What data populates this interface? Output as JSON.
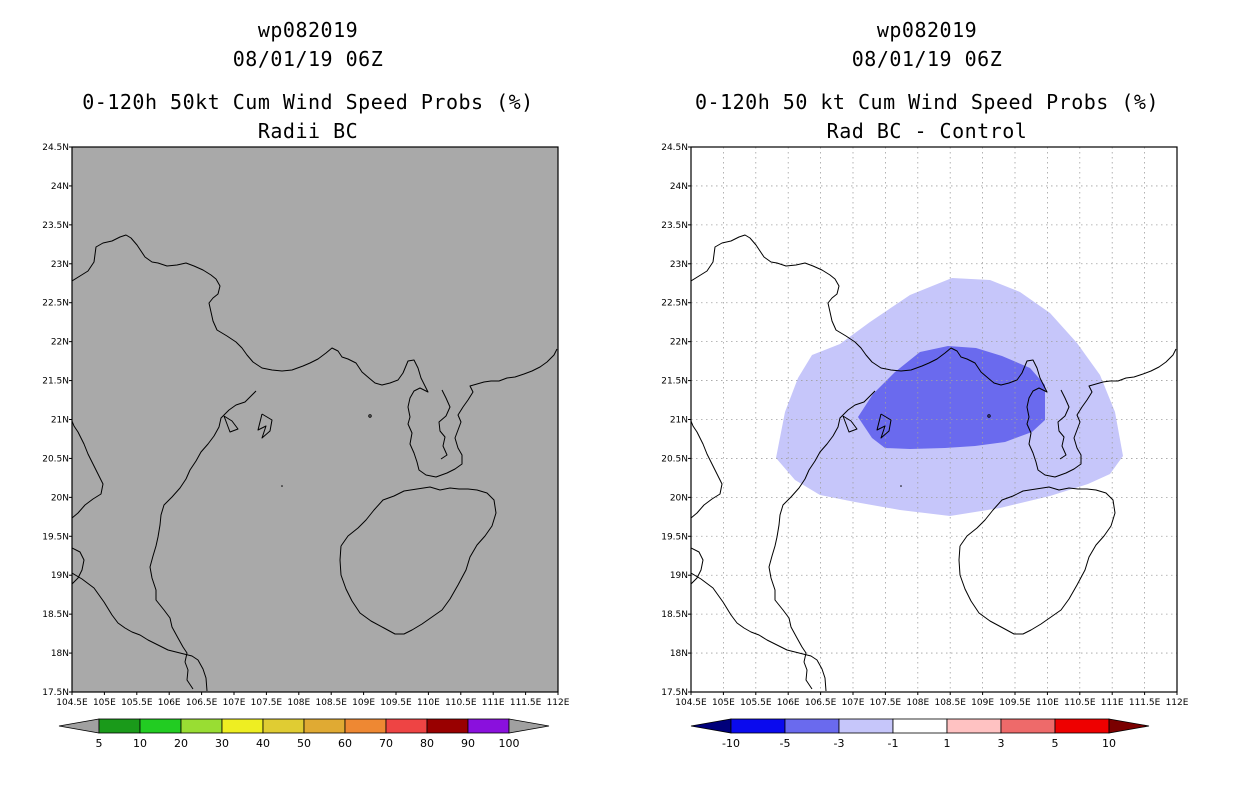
{
  "left_panel": {
    "titles": [
      "wp082019",
      "08/01/19 06Z",
      "0-120h 50kt Cum Wind Speed Probs (%)",
      "Radii BC"
    ],
    "background_color": "#a9a9a9",
    "colorbar": {
      "labels": [
        "5",
        "10",
        "20",
        "30",
        "40",
        "50",
        "60",
        "70",
        "80",
        "90",
        "100"
      ],
      "colors": [
        "#1a9a1a",
        "#22cc22",
        "#99dd33",
        "#eeee22",
        "#e0cc33",
        "#e0aa33",
        "#ee8833",
        "#ee4444",
        "#990000",
        "#8a10dd"
      ],
      "end_color": "#a0a0a0"
    }
  },
  "right_panel": {
    "titles": [
      "wp082019",
      "08/01/19 06Z",
      "0-120h 50 kt Cum Wind Speed Probs (%)",
      "Rad BC - Control"
    ],
    "background_color": "#ffffff",
    "shading": {
      "outer_color": "#c6c6fa",
      "inner_color": "#6a6aee"
    },
    "colorbar": {
      "labels": [
        "-10",
        "-5",
        "-3",
        "-1",
        "1",
        "3",
        "5",
        "10"
      ],
      "colors": [
        "#0a0aee",
        "#6a6aee",
        "#c6c6fa",
        "#ffffff",
        "#ffc2c2",
        "#ee6a6a",
        "#ee0000"
      ],
      "low_end_color": "#00007a",
      "high_end_color": "#7a0000"
    }
  },
  "axes": {
    "x_ticks": [
      "104.5E",
      "105E",
      "105.5E",
      "106E",
      "106.5E",
      "107E",
      "107.5E",
      "108E",
      "108.5E",
      "109E",
      "109.5E",
      "110E",
      "110.5E",
      "111E",
      "111.5E",
      "112E"
    ],
    "y_ticks": [
      "24.5N",
      "24N",
      "23.5N",
      "23N",
      "22.5N",
      "22N",
      "21.5N",
      "21N",
      "20.5N",
      "20N",
      "19.5N",
      "19N",
      "18.5N",
      "18N",
      "17.5N"
    ]
  }
}
